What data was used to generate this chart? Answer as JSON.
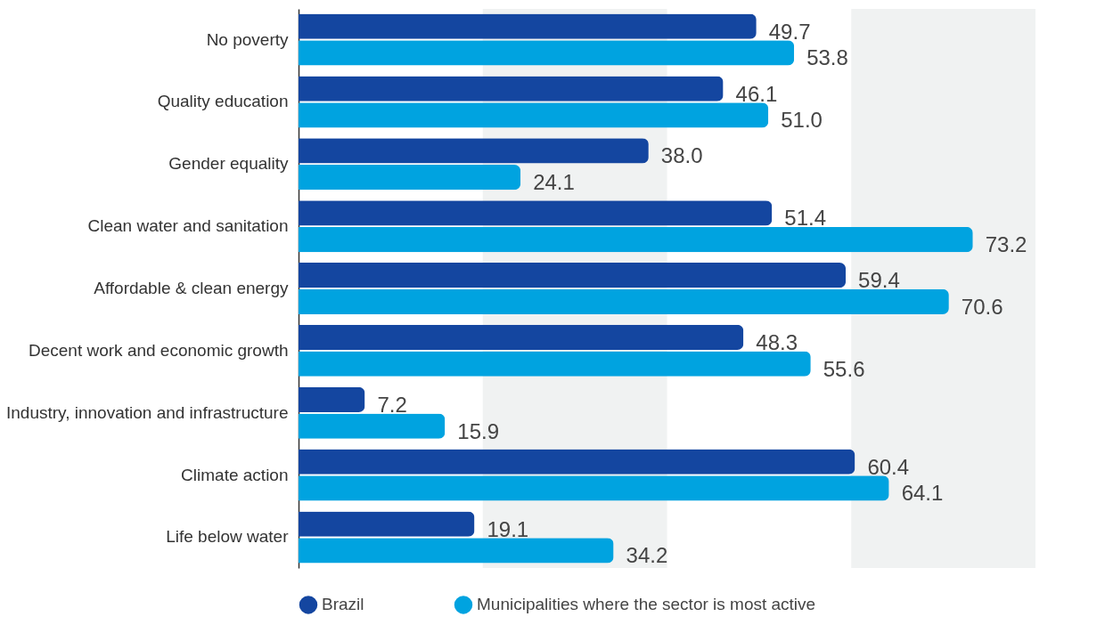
{
  "chart_data": {
    "type": "bar",
    "orientation": "horizontal",
    "categories": [
      "No poverty",
      "Quality education",
      "Gender equality",
      "Clean water and sanitation",
      "Affordable & clean energy",
      "Decent work and economic growth",
      "Industry, innovation and infrastructure",
      "Climate action",
      "Life below water"
    ],
    "series": [
      {
        "name": "Brazil",
        "color": "#1446a0",
        "values": [
          49.7,
          46.1,
          38.0,
          51.4,
          59.4,
          48.3,
          7.2,
          60.4,
          19.1
        ],
        "value_labels": [
          "49.7",
          "46.1",
          "38.0",
          "51.4",
          "59.4",
          "48.3",
          "7.2",
          "60.4",
          "19.1"
        ]
      },
      {
        "name": "Municipalities where the sector is most active",
        "color": "#00a3e0",
        "values": [
          53.8,
          51.0,
          24.1,
          73.2,
          70.6,
          55.6,
          15.9,
          64.1,
          34.2
        ],
        "value_labels": [
          "53.8",
          "51.0",
          "24.1",
          "73.2",
          "70.6",
          "55.6",
          "15.9",
          "64.1",
          "34.2"
        ]
      }
    ],
    "xlim": [
      0,
      80
    ],
    "legend": "bottom",
    "tick_labels": "y",
    "bands": [
      {
        "axis": "x",
        "from": 20,
        "to": 40,
        "color": "#f0f2f2"
      },
      {
        "axis": "x",
        "from": 60,
        "to": 80,
        "color": "#f0f2f2"
      }
    ]
  }
}
